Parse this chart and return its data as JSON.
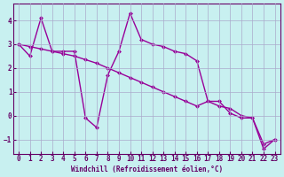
{
  "xlabel": "Windchill (Refroidissement éolien,°C)",
  "bg_color": "#c8f0f0",
  "line_color": "#990099",
  "line1_y": [
    3.0,
    2.5,
    4.1,
    2.7,
    2.7,
    2.7,
    -0.1,
    -0.5,
    1.7,
    2.7,
    4.3,
    3.2,
    3.0,
    2.9,
    2.7,
    2.6,
    2.3,
    0.6,
    0.6,
    0.1,
    -0.1,
    -0.1,
    -1.2,
    -1.0
  ],
  "line2_y": [
    3.0,
    2.9,
    2.8,
    2.7,
    2.6,
    2.5,
    2.35,
    2.2,
    2.0,
    1.8,
    1.6,
    1.4,
    1.2,
    1.0,
    0.8,
    0.6,
    0.4,
    0.6,
    0.4,
    0.3,
    0.0,
    -0.1,
    -1.4,
    -1.0
  ],
  "xlim": [
    -0.5,
    23.5
  ],
  "ylim": [
    -1.6,
    4.7
  ],
  "yticks": [
    -1,
    0,
    1,
    2,
    3,
    4
  ],
  "xticks": [
    0,
    1,
    2,
    3,
    4,
    5,
    6,
    7,
    8,
    9,
    10,
    11,
    12,
    13,
    14,
    15,
    16,
    17,
    18,
    19,
    20,
    21,
    22,
    23
  ],
  "grid_color": "#aaaacc",
  "font_color": "#660066",
  "marker_size": 2.5,
  "linewidth": 1.0
}
